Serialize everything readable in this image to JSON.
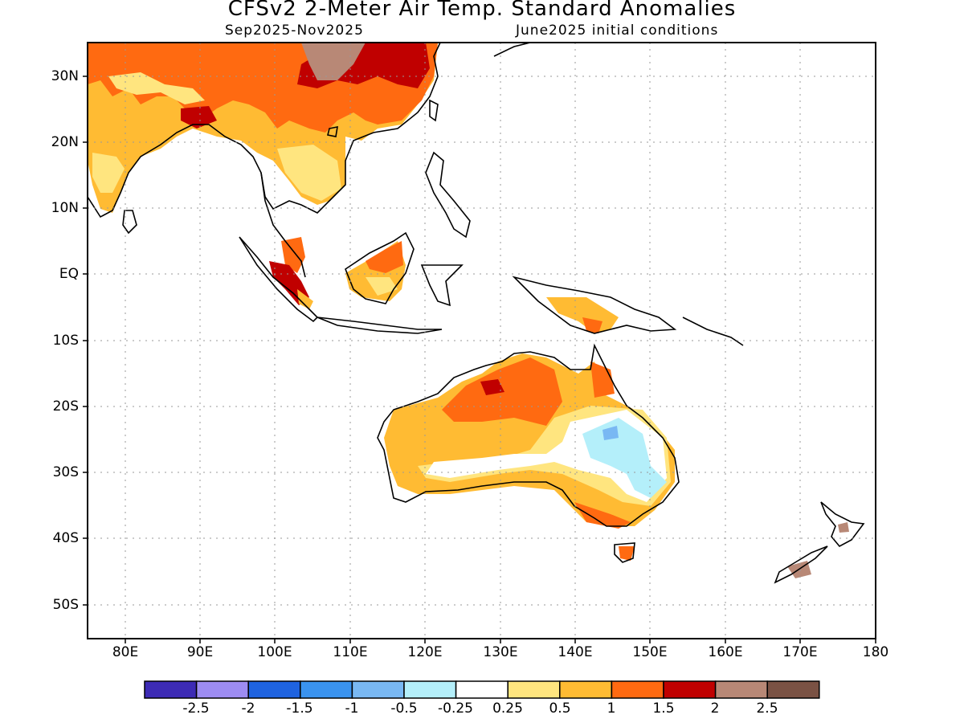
{
  "header": {
    "title": "CFSv2 2-Meter Air Temp. Standard Anomalies",
    "period": "Sep2025-Nov2025",
    "init": "June2025 initial conditions"
  },
  "map": {
    "lat_labels": [
      "30N",
      "20N",
      "10N",
      "EQ",
      "10S",
      "20S",
      "30S",
      "40S",
      "50S"
    ],
    "lon_labels": [
      "80E",
      "90E",
      "100E",
      "110E",
      "120E",
      "130E",
      "140E",
      "150E",
      "160E",
      "170E",
      "180"
    ]
  },
  "colorbar": {
    "colors": [
      "#3d2bb5",
      "#9d8cf2",
      "#1f63e0",
      "#3a93ef",
      "#79b8f3",
      "#b4effa",
      "#ffffff",
      "#ffe57f",
      "#ffbb33",
      "#ff6a11",
      "#c00000",
      "#b88876",
      "#7a5244"
    ],
    "labels": [
      "-2.5",
      "-2",
      "-1.5",
      "-1",
      "-0.5",
      "-0.25",
      "0.25",
      "0.5",
      "1",
      "1.5",
      "2",
      "2.5"
    ]
  }
}
